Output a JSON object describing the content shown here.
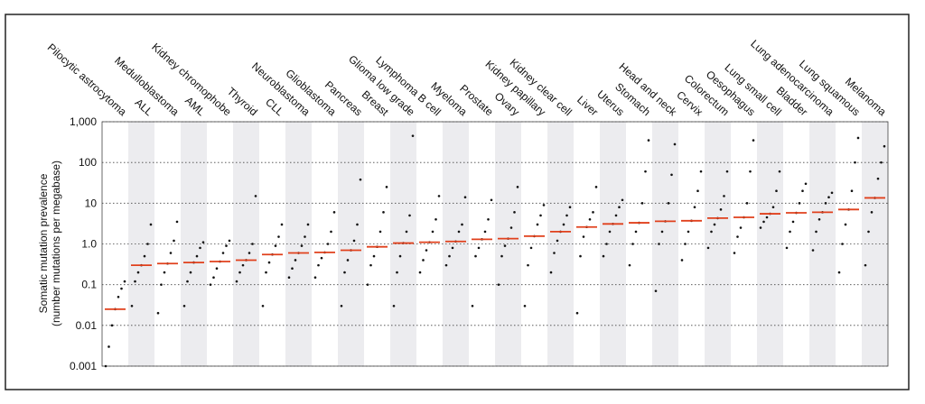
{
  "chart_data": {
    "type": "dot_plot",
    "y_label": "Somatic mutation prevalence",
    "y_label_sub": "(number mutations per megabase)",
    "log_scale": true,
    "grid": true,
    "ylim": [
      0.001,
      1000
    ],
    "yticks": [
      {
        "value": 1000,
        "label": "1,000"
      },
      100,
      10,
      {
        "value": 1,
        "label": "1.0"
      },
      0.1,
      0.01,
      0.001
    ],
    "band_color": "#ececef",
    "dot_color": "#111111",
    "median_color": "#e0401c",
    "categories": [
      "Pilocytic astrocytoma",
      "ALL",
      "Medulloblastoma",
      "AML",
      "Kidney chromophobe",
      "Thyroid",
      "CLL",
      "Neuroblastoma",
      "Glioblastoma",
      "Pancreas",
      "Breast",
      "Glioma low grade",
      "Lymphoma B cell",
      "Myeloma",
      "Prostate",
      "Ovary",
      "Kidney papillary",
      "Kidney clear cell",
      "Liver",
      "Uterus",
      "Stomach",
      "Head and neck",
      "Cervix",
      "Colorectum",
      "Oesophagus",
      "Lung small cell",
      "Bladder",
      "Lung adenocarcinoma",
      "Lung squamous",
      "Melanoma"
    ],
    "medians": [
      0.025,
      0.3,
      0.33,
      0.35,
      0.37,
      0.4,
      0.55,
      0.6,
      0.62,
      0.7,
      0.85,
      1.05,
      1.1,
      1.15,
      1.3,
      1.35,
      1.55,
      2,
      2.6,
      3.1,
      3.3,
      3.6,
      3.7,
      4.3,
      4.5,
      5.5,
      5.8,
      6,
      7,
      13.5
    ],
    "distributions": [
      [
        0.001,
        0.003,
        0.01,
        0.025,
        0.05,
        0.08,
        0.12
      ],
      [
        0.03,
        0.12,
        0.2,
        0.3,
        0.5,
        1,
        3
      ],
      [
        0.02,
        0.1,
        0.2,
        0.33,
        0.6,
        1.2,
        3.5
      ],
      [
        0.03,
        0.12,
        0.2,
        0.35,
        0.5,
        0.8,
        1.1
      ],
      [
        0.1,
        0.15,
        0.25,
        0.37,
        0.6,
        0.9,
        1.2
      ],
      [
        0.12,
        0.2,
        0.3,
        0.4,
        0.6,
        1,
        15
      ],
      [
        0.03,
        0.2,
        0.35,
        0.55,
        0.9,
        1.5,
        3
      ],
      [
        0.15,
        0.25,
        0.4,
        0.6,
        0.9,
        1.5,
        3
      ],
      [
        0.15,
        0.3,
        0.45,
        0.62,
        1,
        2,
        6
      ],
      [
        0.03,
        0.2,
        0.4,
        0.7,
        1.2,
        3,
        38
      ],
      [
        0.1,
        0.3,
        0.5,
        0.85,
        2,
        6,
        25
      ],
      [
        0.03,
        0.2,
        0.5,
        1.05,
        2,
        5,
        450
      ],
      [
        0.2,
        0.4,
        0.7,
        1.1,
        2,
        4,
        15
      ],
      [
        0.3,
        0.5,
        0.8,
        1.15,
        2,
        3,
        14
      ],
      [
        0.03,
        0.5,
        0.8,
        1.3,
        2,
        4,
        12
      ],
      [
        0.1,
        0.5,
        0.9,
        1.35,
        2.5,
        6,
        25
      ],
      [
        0.03,
        0.3,
        0.8,
        1.55,
        3,
        5,
        9
      ],
      [
        0.2,
        0.6,
        1.2,
        2,
        3,
        5,
        8
      ],
      [
        0.02,
        0.5,
        1.5,
        2.6,
        4,
        6,
        25
      ],
      [
        0.5,
        1,
        2,
        3.1,
        5,
        8,
        12
      ],
      [
        0.3,
        1,
        2,
        3.3,
        10,
        60,
        350
      ],
      [
        0.07,
        1,
        2,
        3.6,
        10,
        50,
        280
      ],
      [
        0.4,
        1,
        2,
        3.7,
        8,
        20,
        60
      ],
      [
        0.8,
        2,
        3,
        4.3,
        7,
        15,
        60
      ],
      [
        0.6,
        1.5,
        2.5,
        4.5,
        10,
        60,
        350
      ],
      [
        2.5,
        3.5,
        4.5,
        5.5,
        8,
        20,
        60
      ],
      [
        0.8,
        2,
        3.5,
        5.8,
        10,
        20,
        30
      ],
      [
        0.7,
        2,
        4,
        6,
        10,
        14,
        18
      ],
      [
        0.2,
        1,
        3,
        7,
        20,
        100,
        400
      ],
      [
        0.3,
        2,
        6,
        13.5,
        40,
        100,
        250
      ]
    ]
  }
}
